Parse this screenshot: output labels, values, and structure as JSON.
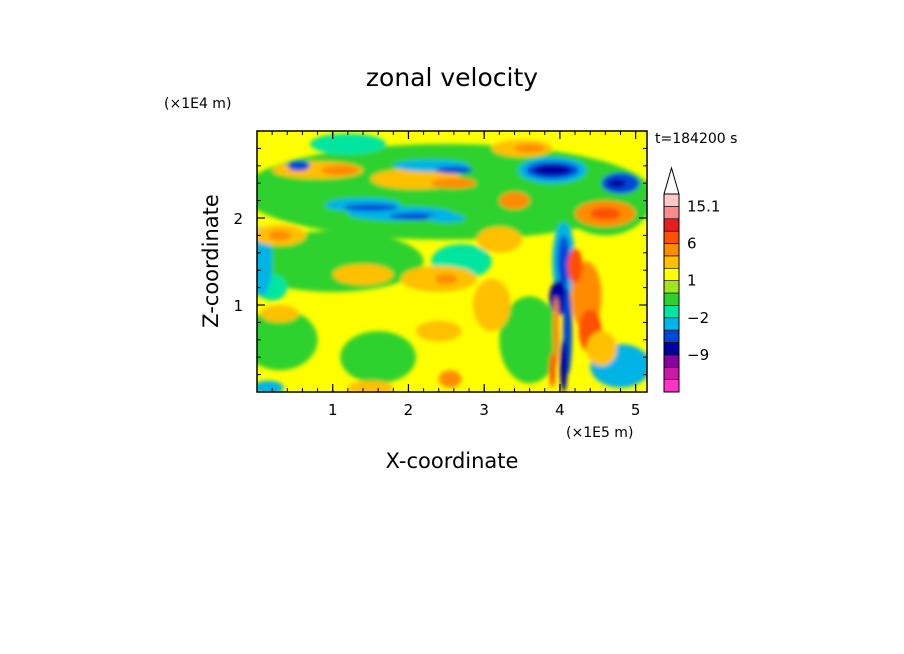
{
  "chart_data": {
    "type": "heatmap",
    "title": "zonal velocity",
    "xlabel": "X-coordinate",
    "ylabel": "Z-coordinate",
    "x_scale_label": "(×1E5 m)",
    "y_scale_label": "(×1E4 m)",
    "time_label": "t=184200 s",
    "xlim": [
      0,
      5.15
    ],
    "ylim": [
      0,
      3.0
    ],
    "x_ticks": [
      1,
      2,
      3,
      4,
      5
    ],
    "y_ticks": [
      1,
      2
    ],
    "colorbar": {
      "levels": [
        -15,
        -12,
        -9,
        -6,
        -3,
        -2,
        -1,
        0,
        1,
        2,
        3,
        6,
        9,
        12,
        15.1
      ],
      "labels": [
        {
          "value": 15.1,
          "text": "15.1"
        },
        {
          "value": 6,
          "text": "6"
        },
        {
          "value": 1,
          "text": "1"
        },
        {
          "value": -2,
          "text": "−2"
        },
        {
          "value": -9,
          "text": "−9"
        }
      ],
      "colors": [
        "#ff33cc",
        "#cc1aa6",
        "#8b00a0",
        "#0000a0",
        "#0047d8",
        "#00b4e6",
        "#00e6a0",
        "#2ed22e",
        "#a0e61e",
        "#ffff00",
        "#ffc000",
        "#ff8c00",
        "#ff5000",
        "#e61e1e",
        "#ff8c8c",
        "#ffc8c8"
      ]
    },
    "features": [
      {
        "name": "blue jet band",
        "x": [
          0.5,
          2.6
        ],
        "z": [
          2.0,
          2.6
        ],
        "value": -5
      },
      {
        "name": "strong negative core",
        "x": [
          3.5,
          4.5
        ],
        "z": [
          2.4,
          2.9
        ],
        "value": -12
      },
      {
        "name": "vertical shear zone",
        "x": [
          3.8,
          4.2
        ],
        "z": [
          0.0,
          1.5
        ],
        "value": -9
      },
      {
        "name": "positive upper band",
        "x": [
          0.3,
          2.5
        ],
        "z": [
          2.4,
          2.8
        ],
        "value": 5
      }
    ]
  }
}
